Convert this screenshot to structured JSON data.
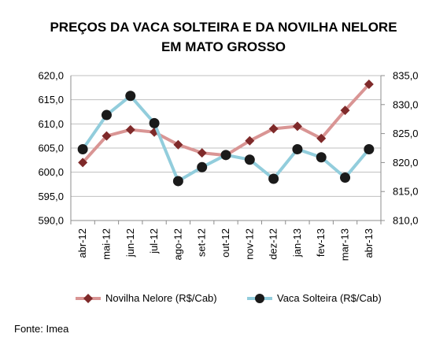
{
  "chart_data": {
    "type": "line",
    "title_line1": "PREÇOS DA VACA SOLTEIRA E DA NOVILHA NELORE",
    "title_line2": "EM MATO GROSSO",
    "categories": [
      "abr-12",
      "mai-12",
      "jun-12",
      "jul-12",
      "ago-12",
      "set-12",
      "out-12",
      "nov-12",
      "dez-12",
      "jan-13",
      "fev-13",
      "mar-13",
      "abr-13"
    ],
    "y_left": {
      "range": [
        590,
        620
      ],
      "step": 5,
      "ticks": [
        "590,0",
        "595,0",
        "600,0",
        "605,0",
        "610,0",
        "615,0",
        "620,0"
      ]
    },
    "y_right": {
      "range": [
        810,
        835
      ],
      "step": 5,
      "ticks": [
        "810,0",
        "815,0",
        "820,0",
        "825,0",
        "830,0",
        "835,0"
      ]
    },
    "series": [
      {
        "name": "Novilha Nelore (R$/Cab)",
        "axis": "left",
        "color": "#d99594",
        "marker": "diamond",
        "marker_color": "#7f2a2a",
        "values": [
          602.0,
          607.5,
          608.8,
          608.3,
          605.7,
          604.0,
          603.5,
          606.5,
          609.0,
          609.5,
          607.0,
          612.8,
          618.2
        ]
      },
      {
        "name": "Vaca Solteira (R$/Cab)",
        "axis": "right",
        "color": "#92cddc",
        "marker": "circle",
        "marker_color": "#1a1a1a",
        "values": [
          822.3,
          828.2,
          831.5,
          826.8,
          816.8,
          819.2,
          821.3,
          820.5,
          817.2,
          822.3,
          820.9,
          817.4,
          822.3
        ]
      }
    ],
    "grid": true,
    "legend_position": "bottom"
  },
  "legend": {
    "series1": "Novilha Nelore (R$/Cab)",
    "series2": "Vaca Solteira (R$/Cab)"
  },
  "source": "Fonte: Imea"
}
